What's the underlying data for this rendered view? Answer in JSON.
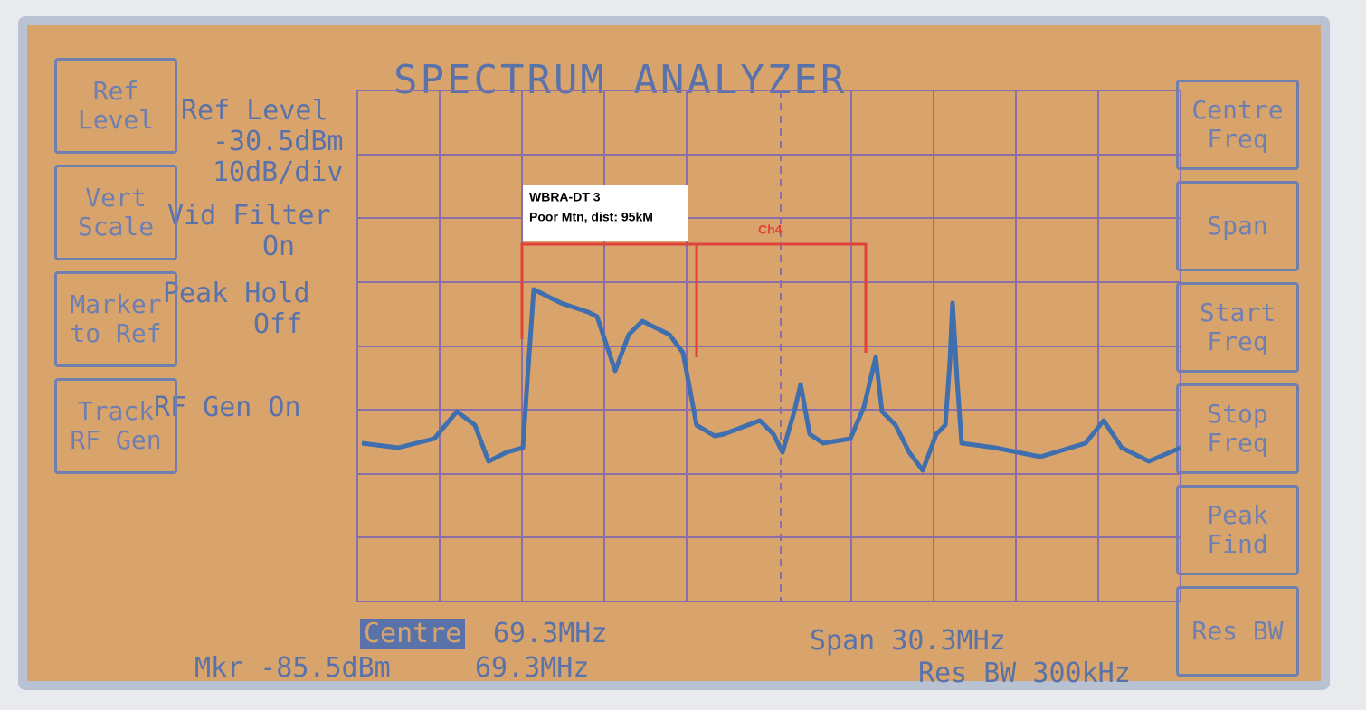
{
  "header": {
    "title": "SPECTRUM ANALYZER"
  },
  "left_keys": [
    [
      "Ref",
      "Level"
    ],
    [
      "Vert",
      "Scale"
    ],
    [
      "Marker",
      "to Ref"
    ],
    [
      "Track",
      "RF Gen"
    ]
  ],
  "status": {
    "ref_level_label": "Ref Level",
    "ref_level": "-30.5dBm",
    "scale": "10dB/div",
    "vid_filter_label": "Vid Filter",
    "vid_filter": "On",
    "peak_hold_label": "Peak Hold",
    "peak_hold": "Off",
    "rf_gen": "RF Gen On"
  },
  "right_keys": [
    [
      "Centre",
      "Freq"
    ],
    [
      "Span"
    ],
    [
      "Start",
      "Freq"
    ],
    [
      "Stop",
      "Freq"
    ],
    [
      "Peak",
      "Find"
    ],
    [
      "Res BW"
    ]
  ],
  "footer": {
    "mode": "Centre",
    "centre": "69.3MHz",
    "span": "Span 30.3MHz",
    "marker": "Mkr -85.5dBm",
    "marker_freq": "69.3MHz",
    "res_bw": "Res BW 300kHz"
  },
  "annotations": {
    "station": [
      "WBRA-DT 3",
      "Poor Mtn, dist: 95kM"
    ],
    "channel": "Ch4"
  }
}
